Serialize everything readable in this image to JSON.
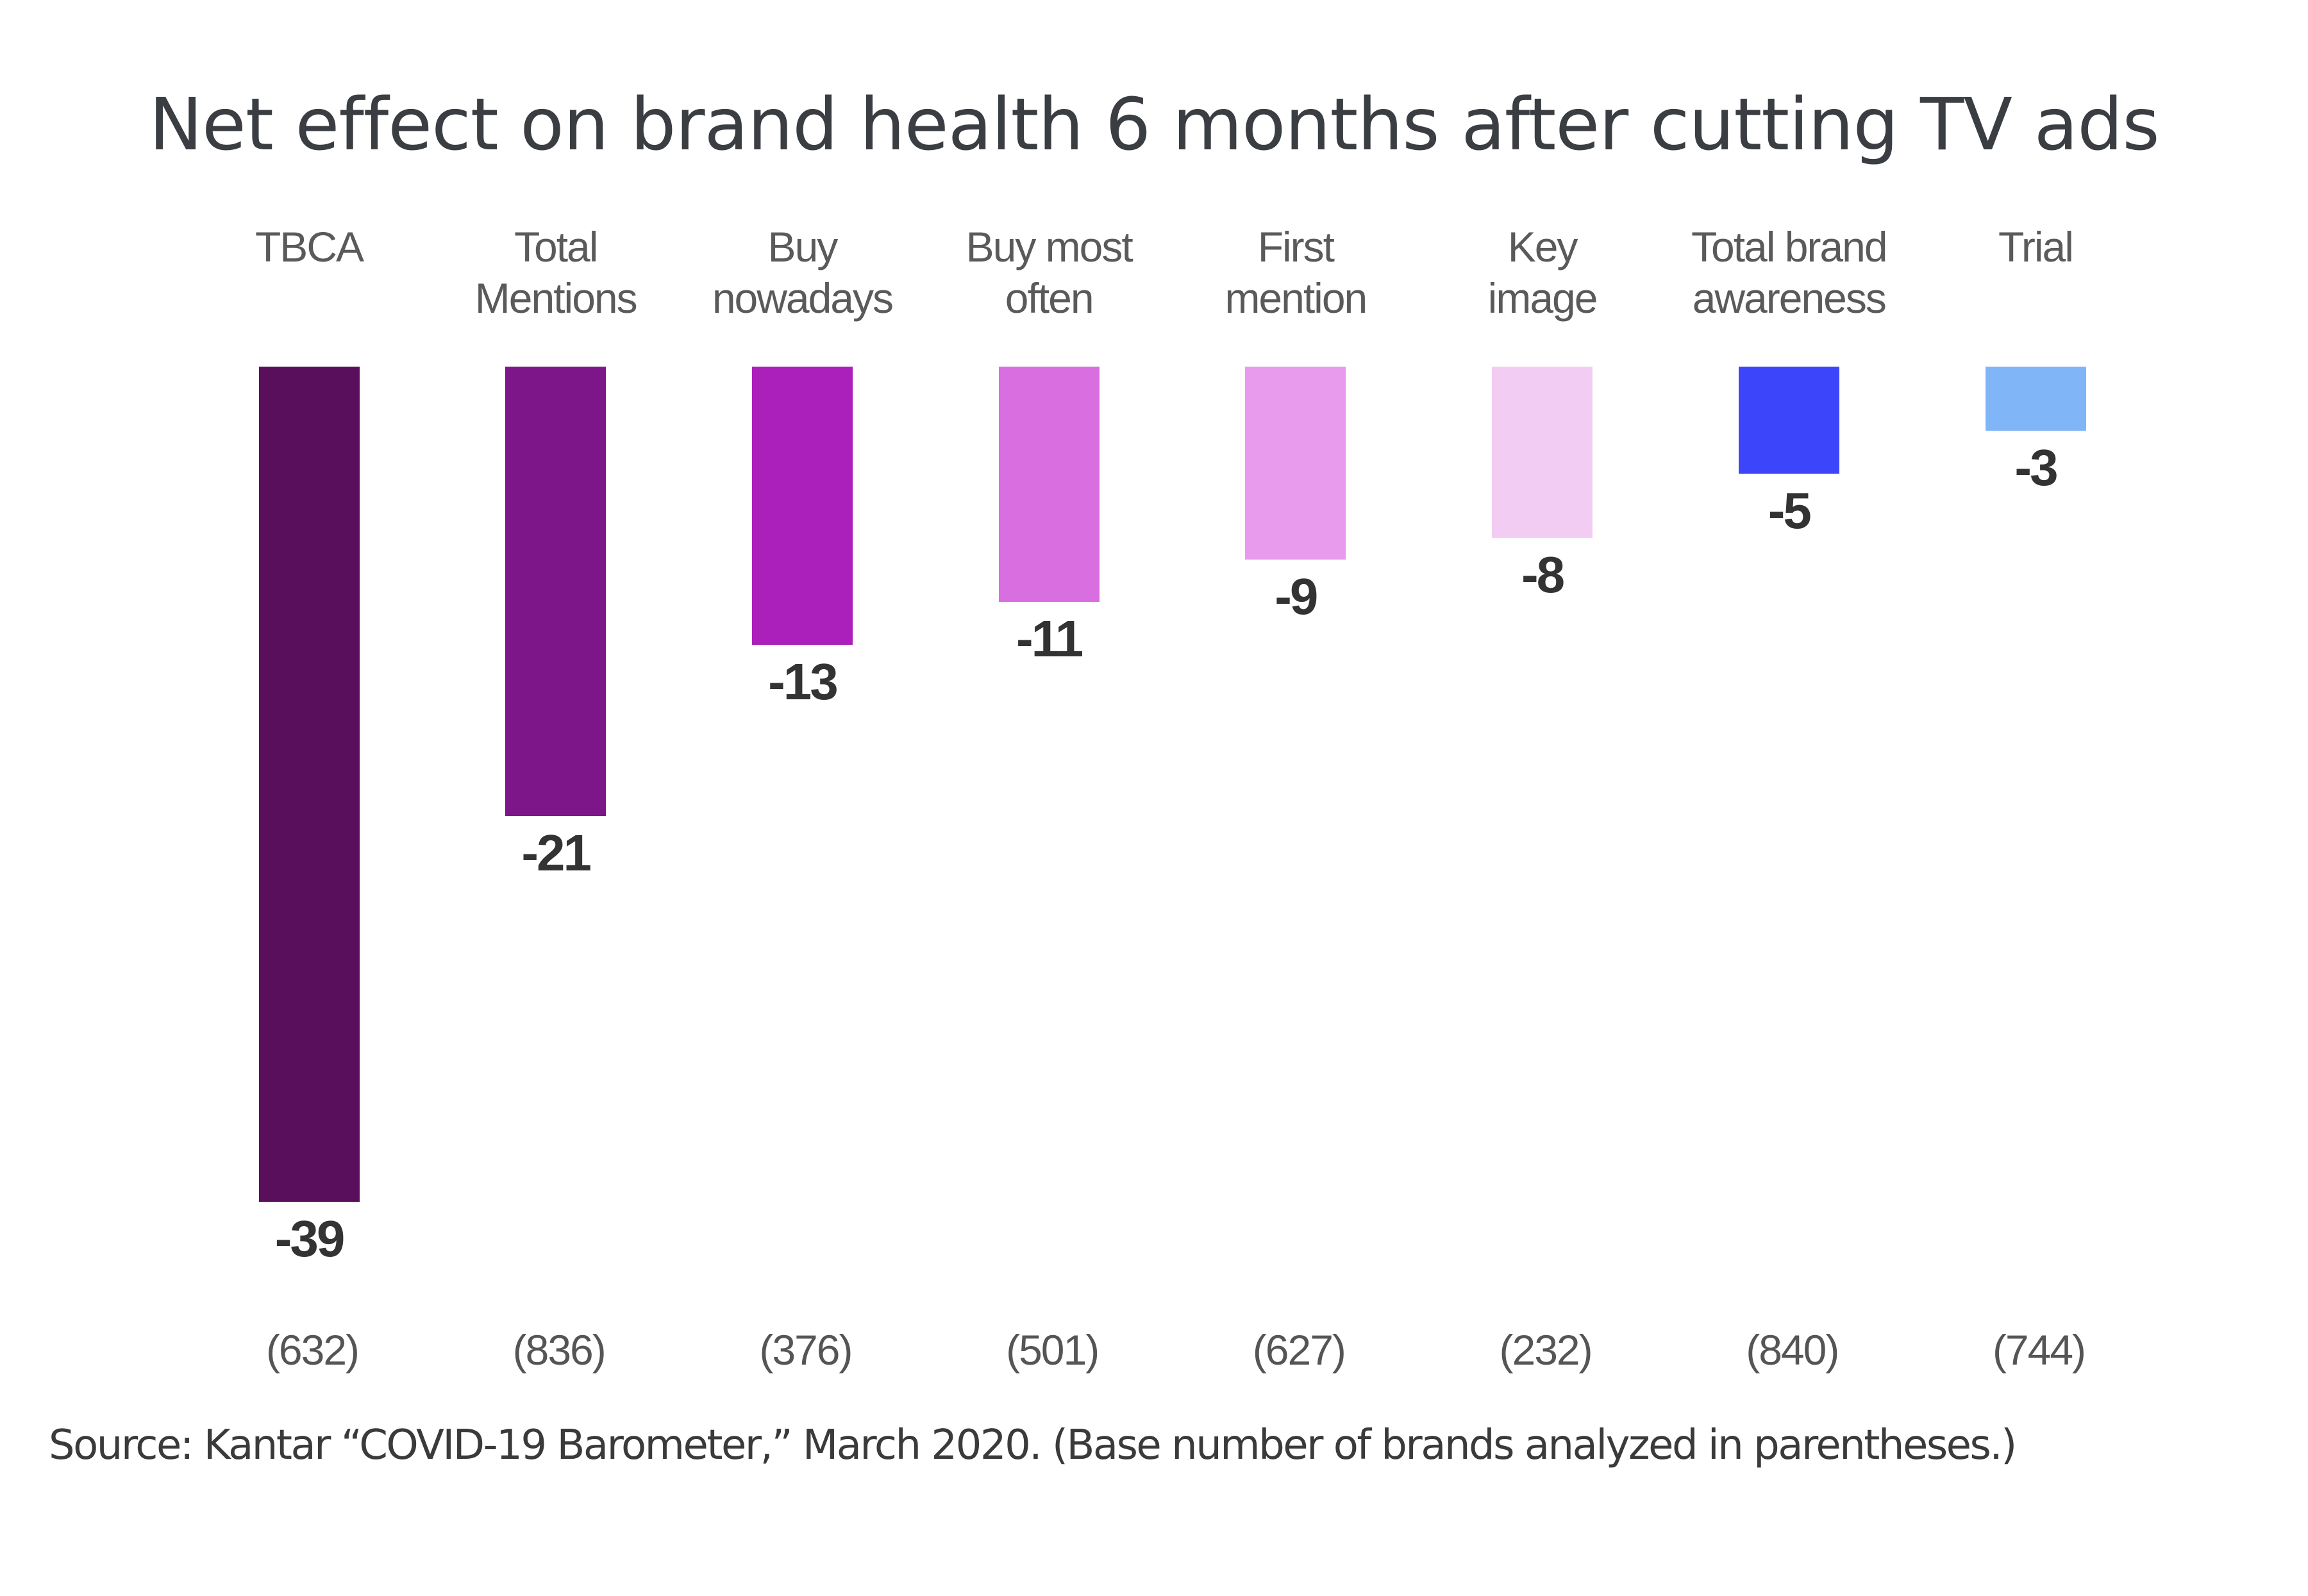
{
  "chart_data": {
    "type": "bar",
    "title": "Net effect on brand health 6 months after cutting TV ads",
    "xlabel": "",
    "ylabel": "",
    "ylim": [
      -39,
      0
    ],
    "grid": false,
    "legend": "none",
    "categories": [
      "TBCA",
      "Total Mentions",
      "Buy nowadays",
      "Buy most often",
      "First mention",
      "Key image",
      "Total brand awareness",
      "Trial"
    ],
    "category_lines": [
      [
        "TBCA"
      ],
      [
        "Total",
        "Mentions"
      ],
      [
        "Buy",
        "nowadays"
      ],
      [
        "Buy most",
        "often"
      ],
      [
        "First",
        "mention"
      ],
      [
        "Key",
        "image"
      ],
      [
        "Total brand",
        "awareness"
      ],
      [
        "Trial"
      ]
    ],
    "values": [
      -39,
      -21,
      -13,
      -11,
      -9,
      -8,
      -5,
      -3
    ],
    "value_labels": [
      "-39",
      "-21",
      "-13",
      "-11",
      "-9",
      "-8",
      "-5",
      "-3"
    ],
    "base_counts": [
      "(632)",
      "(836)",
      "(376)",
      "(501)",
      "(627)",
      "(232)",
      "(840)",
      "(744)"
    ],
    "colors": [
      "#5a0f5c",
      "#7d1789",
      "#ab1fba",
      "#d96ee0",
      "#e89aec",
      "#f3ccf3",
      "#3d45fb",
      "#80b5f8"
    ],
    "source": "Source: Kantar “COVID-19 Barometer,” March 2020. (Base number of brands analyzed in parentheses.)"
  }
}
